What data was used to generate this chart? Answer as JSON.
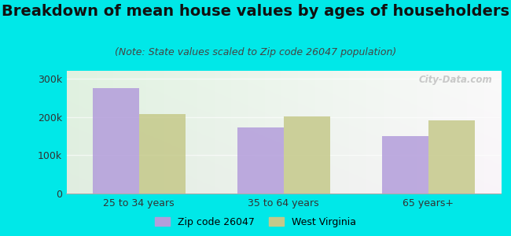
{
  "title": "Breakdown of mean house values by ages of householders",
  "subtitle": "(Note: State values scaled to Zip code 26047 population)",
  "categories": [
    "25 to 34 years",
    "35 to 64 years",
    "65 years+"
  ],
  "zip_values": [
    275000,
    172000,
    150000
  ],
  "state_values": [
    207000,
    202000,
    190000
  ],
  "zip_color": "#b39ddb",
  "state_color": "#c5c98a",
  "background_outer": "#00e8e8",
  "ylim": [
    0,
    320000
  ],
  "yticks": [
    0,
    100000,
    200000,
    300000
  ],
  "ytick_labels": [
    "0",
    "100k",
    "200k",
    "300k"
  ],
  "legend_zip_label": "Zip code 26047",
  "legend_state_label": "West Virginia",
  "bar_width": 0.32,
  "title_fontsize": 14,
  "subtitle_fontsize": 9,
  "watermark": "City-Data.com"
}
